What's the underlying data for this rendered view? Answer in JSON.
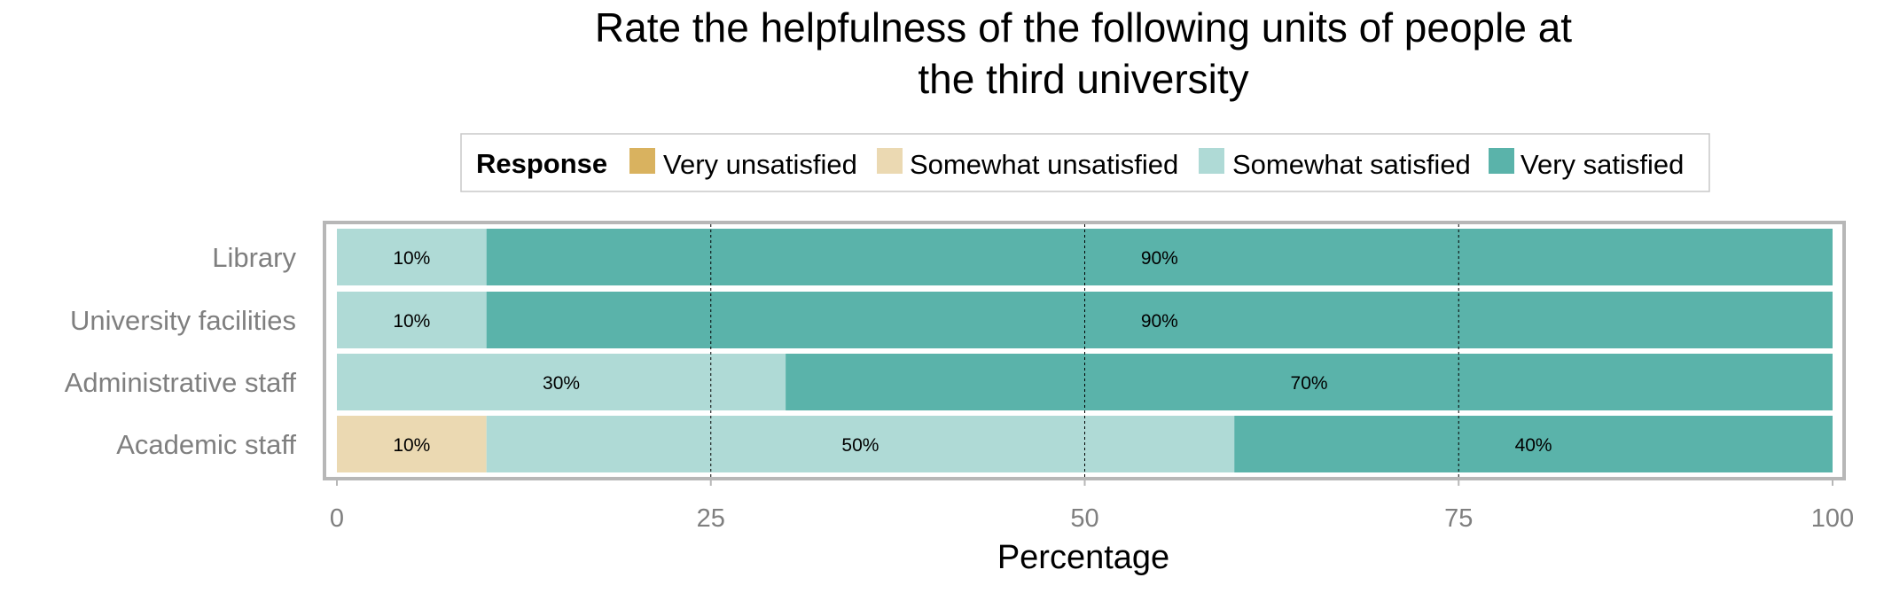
{
  "chart_data": {
    "type": "bar",
    "orientation": "horizontal",
    "stacked": true,
    "title": [
      "Rate the helpfulness of the following units of people at",
      "the third university"
    ],
    "xlabel": "Percentage",
    "ylabel": "",
    "xlim": [
      0,
      100
    ],
    "xticks": [
      0,
      25,
      50,
      75,
      100
    ],
    "grid": "major vertical dashed lines",
    "legend": {
      "title": "Response",
      "position": "top",
      "entries": [
        "Very unsatisfied",
        "Somewhat unsatisfied",
        "Somewhat satisfied",
        "Very satisfied"
      ]
    },
    "categories": [
      "Library",
      "University facilities",
      "Administrative staff",
      "Academic staff"
    ],
    "series": [
      {
        "name": "Very unsatisfied",
        "color": "#D9B25F",
        "values": [
          0,
          0,
          0,
          0
        ]
      },
      {
        "name": "Somewhat unsatisfied",
        "color": "#EBD9B2",
        "values": [
          0,
          0,
          0,
          10
        ]
      },
      {
        "name": "Somewhat satisfied",
        "color": "#AFDAD6",
        "values": [
          10,
          10,
          30,
          50
        ]
      },
      {
        "name": "Very satisfied",
        "color": "#5AB3AA",
        "values": [
          90,
          90,
          70,
          40
        ]
      }
    ],
    "data_labels": [
      [
        "",
        "",
        "10%",
        "90%"
      ],
      [
        "",
        "",
        "10%",
        "90%"
      ],
      [
        "",
        "",
        "30%",
        "70%"
      ],
      [
        "",
        "10%",
        "50%",
        "40%"
      ]
    ]
  }
}
